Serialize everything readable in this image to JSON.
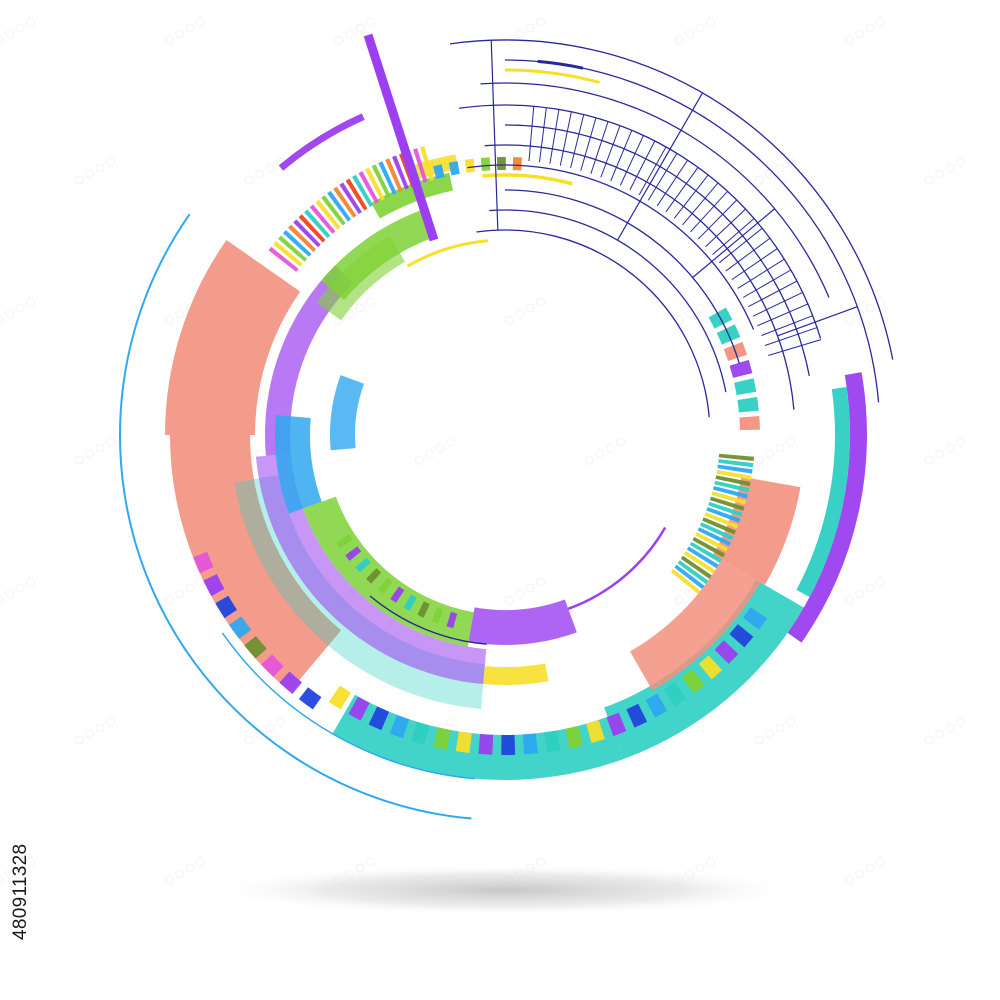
{
  "image": {
    "stock_id": "480911328",
    "background": "#ffffff",
    "palette": {
      "salmon": "#f2917e",
      "teal": "#2ecfc2",
      "purple": "#9b3ff0",
      "green": "#7ed236",
      "sky": "#2fa8f0",
      "yellow": "#f7df2a",
      "blue": "#2244dd",
      "navy": "#28289c",
      "olive": "#6f8f2f",
      "pink": "#e456d8",
      "orange": "#f1843a",
      "red": "#ee4422"
    },
    "icons": [
      "circular-hud-ring-graphic",
      "ground-shadow",
      "watermark-pattern"
    ]
  }
}
